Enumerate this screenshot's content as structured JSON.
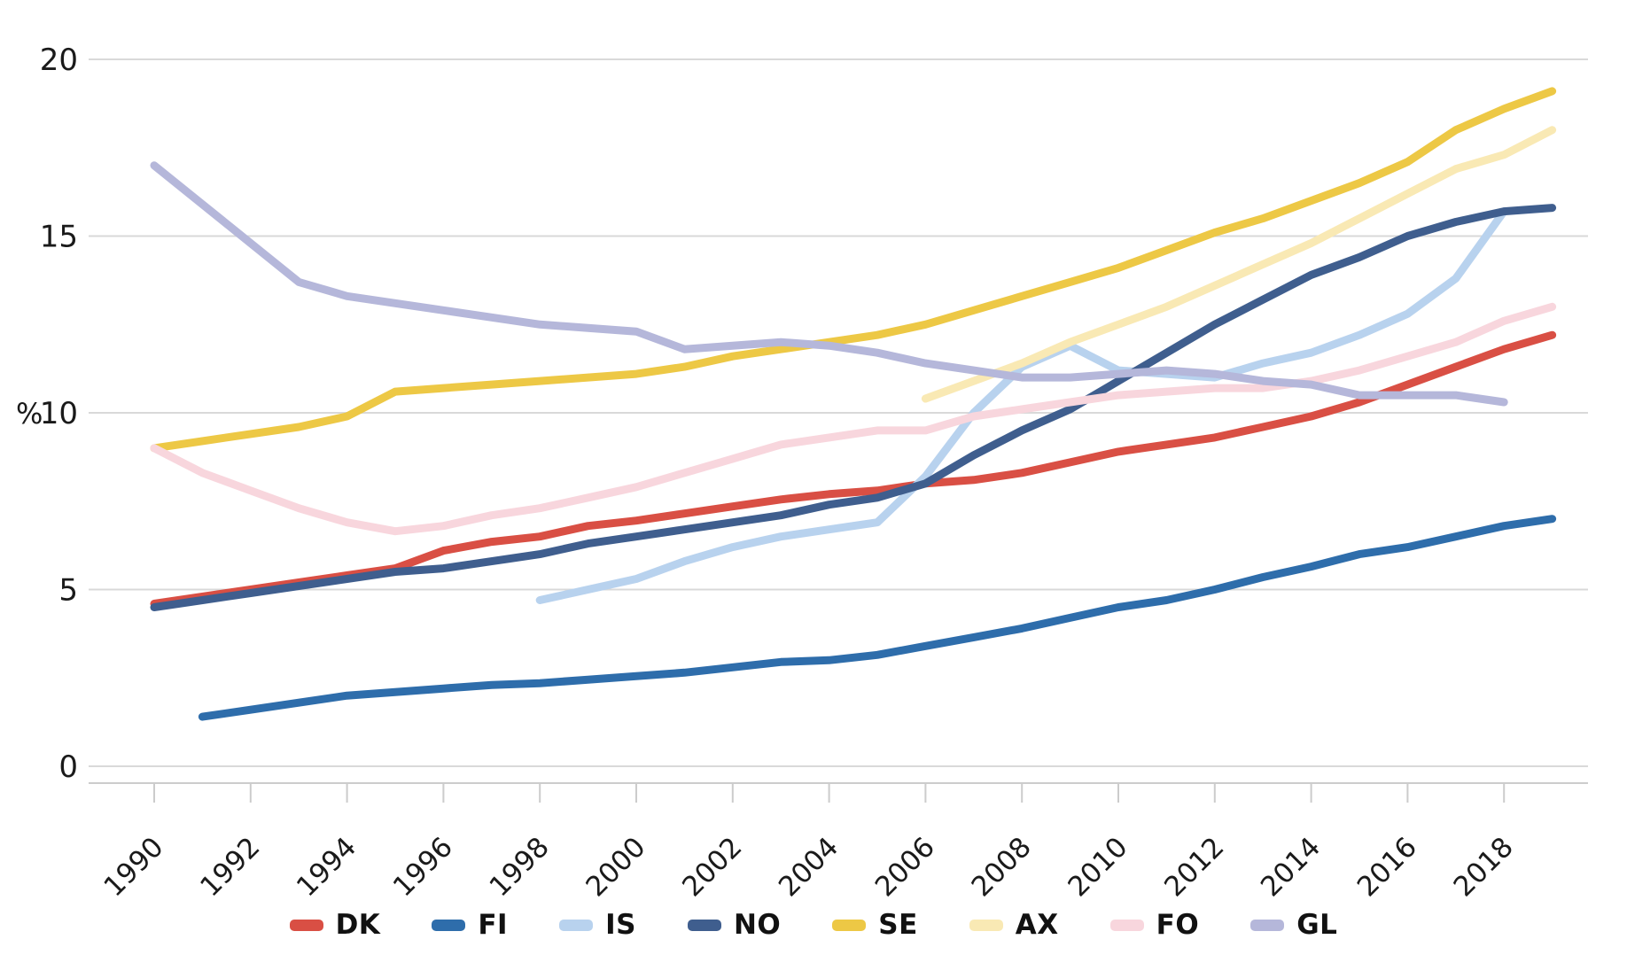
{
  "chart_data": {
    "type": "line",
    "title": "",
    "xlabel": "",
    "ylabel": "%",
    "ylim": [
      0,
      20
    ],
    "yticks": [
      0,
      5,
      10,
      15,
      20
    ],
    "xticks": [
      1990,
      1992,
      1994,
      1996,
      1998,
      2000,
      2002,
      2004,
      2006,
      2008,
      2010,
      2012,
      2014,
      2016,
      2018
    ],
    "x_range": [
      1990,
      2019
    ],
    "grid": "horizontal-only",
    "legend_position": "bottom-center",
    "series": [
      {
        "name": "DK",
        "color": "#d94f44",
        "start": 1990,
        "values": [
          4.6,
          4.8,
          5.0,
          5.2,
          5.4,
          5.6,
          6.1,
          6.35,
          6.5,
          6.8,
          6.95,
          7.15,
          7.35,
          7.55,
          7.7,
          7.8,
          8.0,
          8.1,
          8.3,
          8.6,
          8.9,
          9.1,
          9.3,
          9.6,
          9.9,
          10.3,
          10.8,
          11.3,
          11.8,
          12.2
        ]
      },
      {
        "name": "FI",
        "color": "#2e6dab",
        "start": 1991,
        "values": [
          1.4,
          1.6,
          1.8,
          2.0,
          2.1,
          2.2,
          2.3,
          2.35,
          2.45,
          2.55,
          2.65,
          2.8,
          2.95,
          3.0,
          3.15,
          3.4,
          3.65,
          3.9,
          4.2,
          4.5,
          4.7,
          5.0,
          5.35,
          5.65,
          6.0,
          6.2,
          6.5,
          6.8,
          7.0
        ]
      },
      {
        "name": "IS",
        "color": "#b8d2ee",
        "start": 1998,
        "values": [
          4.7,
          5.0,
          5.3,
          5.8,
          6.2,
          6.5,
          6.7,
          6.9,
          8.2,
          10.0,
          11.3,
          11.9,
          11.2,
          11.1,
          11.0,
          11.4,
          11.7,
          12.2,
          12.8,
          13.8,
          15.7
        ]
      },
      {
        "name": "NO",
        "color": "#3f5e8e",
        "start": 1990,
        "values": [
          4.5,
          4.7,
          4.9,
          5.1,
          5.3,
          5.5,
          5.6,
          5.8,
          6.0,
          6.3,
          6.5,
          6.7,
          6.9,
          7.1,
          7.4,
          7.6,
          8.0,
          8.8,
          9.5,
          10.1,
          10.9,
          11.7,
          12.5,
          13.2,
          13.9,
          14.4,
          15.0,
          15.4,
          15.7,
          15.8
        ]
      },
      {
        "name": "SE",
        "color": "#edc845",
        "start": 1990,
        "values": [
          9.0,
          9.2,
          9.4,
          9.6,
          9.9,
          10.6,
          10.7,
          10.8,
          10.9,
          11.0,
          11.1,
          11.3,
          11.6,
          11.8,
          12.0,
          12.2,
          12.5,
          12.9,
          13.3,
          13.7,
          14.1,
          14.6,
          15.1,
          15.5,
          16.0,
          16.5,
          17.1,
          18.0,
          18.6,
          19.1
        ]
      },
      {
        "name": "AX",
        "color": "#f9e9b4",
        "start": 2006,
        "values": [
          10.4,
          10.9,
          11.4,
          12.0,
          12.5,
          13.0,
          13.6,
          14.2,
          14.8,
          15.5,
          16.2,
          16.9,
          17.3,
          18.0
        ]
      },
      {
        "name": "FO",
        "color": "#f8d6dd",
        "start": 1990,
        "values": [
          9.0,
          8.3,
          7.8,
          7.3,
          6.9,
          6.65,
          6.8,
          7.1,
          7.3,
          7.6,
          7.9,
          8.3,
          8.7,
          9.1,
          9.3,
          9.5,
          9.5,
          9.9,
          10.1,
          10.3,
          10.5,
          10.6,
          10.7,
          10.7,
          10.9,
          11.2,
          11.6,
          12.0,
          12.6,
          13.0
        ]
      },
      {
        "name": "GL",
        "color": "#b5b7da",
        "start": 1990,
        "values": [
          17.0,
          15.9,
          14.8,
          13.7,
          13.3,
          13.1,
          12.9,
          12.7,
          12.5,
          12.4,
          12.3,
          11.8,
          11.9,
          12.0,
          11.9,
          11.7,
          11.4,
          11.2,
          11.0,
          11.0,
          11.1,
          11.2,
          11.1,
          10.9,
          10.8,
          10.5,
          10.5,
          10.5,
          10.3
        ]
      }
    ]
  }
}
